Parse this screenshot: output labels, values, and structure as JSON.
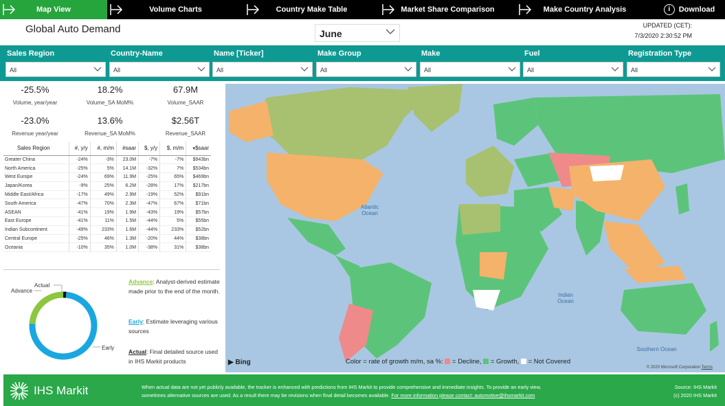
{
  "nav": {
    "tabs": [
      "Map View",
      "Volume Charts",
      "Country Make Table",
      "Market Share Comparison",
      "Make Country Analysis"
    ],
    "download": "Download"
  },
  "header": {
    "title": "Global Auto Demand",
    "month": "June",
    "updated_label": "UPDATED (CET):",
    "updated_value": "7/3/2020 2:30:52 PM"
  },
  "filters": [
    {
      "label": "Sales Region",
      "value": "All"
    },
    {
      "label": "Country-Name",
      "value": "All"
    },
    {
      "label": "Name [Ticker]",
      "value": "All"
    },
    {
      "label": "Make Group",
      "value": "All"
    },
    {
      "label": "Make",
      "value": "All"
    },
    {
      "label": "Fuel",
      "value": "All"
    },
    {
      "label": "Registration Type",
      "value": "All"
    }
  ],
  "kpis": [
    {
      "value": "-25.5%",
      "label": "Volume, year/year"
    },
    {
      "value": "18.2%",
      "label": "Volume_SA MoM%"
    },
    {
      "value": "67.9M",
      "label": "Volume_SAAR"
    },
    {
      "value": "-23.0%",
      "label": "Revenue year/year"
    },
    {
      "value": "13.6%",
      "label": "Revenue_SA MoM%"
    },
    {
      "value": "$2.56T",
      "label": "Revenue_SAAR"
    }
  ],
  "table": {
    "headers": [
      "Sales Region",
      "#, y/y",
      "#, m/m",
      "#saar",
      "$, y/y",
      "$, m/m",
      "$saar"
    ],
    "rows": [
      [
        "Greater China",
        "-24%",
        "-3%",
        "23.0M",
        "-7%",
        "-7%",
        "$943bn"
      ],
      [
        "North America",
        "-25%",
        "5%",
        "14.1M",
        "-32%",
        "7%",
        "$534bn"
      ],
      [
        "West Europe",
        "-24%",
        "69%",
        "11.9M",
        "-25%",
        "65%",
        "$469bn"
      ],
      [
        "Japan/Korea",
        "-9%",
        "25%",
        "6.2M",
        "-28%",
        "17%",
        "$217bn"
      ],
      [
        "Middle East/Africa",
        "-17%",
        "49%",
        "2.9M",
        "-19%",
        "52%",
        "$91bn"
      ],
      [
        "South America",
        "-47%",
        "70%",
        "2.3M",
        "-47%",
        "67%",
        "$71bn"
      ],
      [
        "ASEAN",
        "-41%",
        "19%",
        "1.9M",
        "-43%",
        "19%",
        "$57bn"
      ],
      [
        "East Europe",
        "-41%",
        "11%",
        "1.5M",
        "-44%",
        "5%",
        "$55bn"
      ],
      [
        "Indian Subcontinent",
        "-49%",
        "233%",
        "1.6M",
        "-44%",
        "233%",
        "$52bn"
      ],
      [
        "Central Europe",
        "-25%",
        "46%",
        "1.3M",
        "-20%",
        "44%",
        "$38bn"
      ],
      [
        "Oceania",
        "-10%",
        "35%",
        "1.0M",
        "-38%",
        "31%",
        "$38bn"
      ]
    ]
  },
  "donut": {
    "labels": {
      "actual": "Actual",
      "advance": "Advance",
      "early": "Early"
    },
    "values": {
      "actual": 1.5,
      "advance": 24,
      "early": 74.5
    },
    "colors": {
      "actual": "#111111",
      "advance": "#8dc63f",
      "early": "#1aa7e0"
    }
  },
  "legend": {
    "advance_title": "Advance",
    "advance_text": ": Analyst-derived estimate made prior to the end of the month.",
    "early_title": "Early",
    "early_text": ": Estimate leveraging various sources",
    "actual_title": "Actual",
    "actual_text": ": Final detailed source used in IHS Markit products"
  },
  "map": {
    "atlantic": "Atlantic Ocean",
    "indian": "Indian Ocean",
    "southern": "Southern Ocean",
    "legend_prefix": "Color = rate of growth m/m, sa %:",
    "decline": "= Decline,",
    "growth": "= Growth,",
    "not_covered": "= Not Covered",
    "bing": "Bing",
    "copyright": "© 2020 Microsoft Corporation",
    "terms": "Terms",
    "colors": {
      "decline": "#ef8a8a",
      "growth": "#5cc47a",
      "not_covered": "#ffffff",
      "ocean": "#a9c7e2",
      "orange": "#f4b26b",
      "olive": "#a7c170"
    }
  },
  "footer": {
    "logo": "IHS Markit",
    "line1": "When actual data are not yet publicly available, the tracker is enhanced with predictions from IHS Markit to provide comprehensive and immediate insights. To provide an early view,",
    "line2": "sometimes alternative sources are used. As a result there may be revisions when final detail becomes available.",
    "link": "For more information please contact: automotive@ihsmarkit.com",
    "source": "Source: IHS Markit",
    "copyright": "(c) 2020 IHS Markit"
  }
}
